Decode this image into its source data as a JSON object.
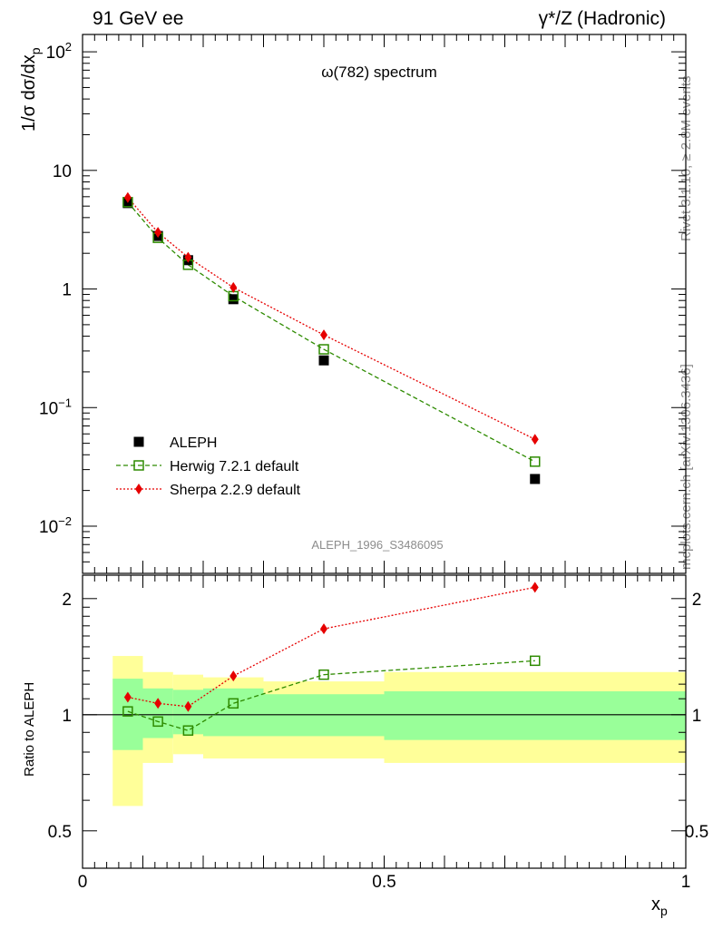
{
  "header": {
    "left": "91 GeV ee",
    "right_sym": "γ*/Z",
    "right_txt": "(Hadronic)"
  },
  "side": {
    "rivet": "Rivet 3.1.10, ≥ 2.8M events",
    "mcplots": "mcplots.cern.ch [arXiv:1306.3436]"
  },
  "chart_data": {
    "type": "scatter",
    "title": "ω(782) spectrum",
    "watermark": "ALEPH_1996_S3486095",
    "xlabel": "x",
    "xlabel_sub": "p",
    "ylabel": "1/σ dσ/dx",
    "ylabel_sub": "p",
    "ratio_ylabel": "Ratio to ALEPH",
    "xlim": [
      0,
      1
    ],
    "ylim": [
      0.004,
      140
    ],
    "yscale": "log",
    "ratio_ylim": [
      0.4,
      2.3
    ],
    "ratio_yscale": "log",
    "xticks": [
      {
        "v": 0,
        "label": "0"
      },
      {
        "v": 0.5,
        "label": "0.5"
      },
      {
        "v": 1,
        "label": "1"
      }
    ],
    "yticks": [
      {
        "v": 0.01,
        "base": "10",
        "exp": "−2"
      },
      {
        "v": 0.1,
        "base": "10",
        "exp": "−1"
      },
      {
        "v": 1,
        "base": "1",
        "exp": ""
      },
      {
        "v": 10,
        "base": "10",
        "exp": ""
      },
      {
        "v": 100,
        "base": "10",
        "exp": "2"
      }
    ],
    "ratio_yticks": [
      {
        "v": 0.5,
        "label": "0.5"
      },
      {
        "v": 1,
        "label": "1"
      },
      {
        "v": 2,
        "label": "2"
      }
    ],
    "legend_position": "bottom-left",
    "series": [
      {
        "name": "ALEPH",
        "marker": "square-filled",
        "color": "#000000",
        "x": [
          0.075,
          0.125,
          0.175,
          0.25,
          0.4,
          0.75
        ],
        "y": [
          5.3,
          2.8,
          1.75,
          0.82,
          0.25,
          0.025
        ],
        "bins": [
          [
            0.05,
            0.1
          ],
          [
            0.1,
            0.15
          ],
          [
            0.15,
            0.2
          ],
          [
            0.2,
            0.3
          ],
          [
            0.3,
            0.5
          ],
          [
            0.5,
            1.0
          ]
        ]
      },
      {
        "name": "Herwig 7.2.1 default",
        "marker": "square-open",
        "color": "#2e8b00",
        "line": "dashed",
        "x": [
          0.075,
          0.125,
          0.175,
          0.25,
          0.4,
          0.75
        ],
        "y": [
          5.4,
          2.7,
          1.6,
          0.87,
          0.31,
          0.035
        ],
        "ratio": [
          1.02,
          0.96,
          0.91,
          1.07,
          1.27,
          1.38
        ]
      },
      {
        "name": "Sherpa 2.2.9 default",
        "marker": "diamond-filled",
        "color": "#e60000",
        "line": "dotted",
        "x": [
          0.075,
          0.125,
          0.175,
          0.25,
          0.4,
          0.75
        ],
        "y": [
          5.9,
          3.0,
          1.85,
          1.03,
          0.41,
          0.054
        ],
        "ratio": [
          1.11,
          1.07,
          1.05,
          1.26,
          1.67,
          2.14
        ]
      }
    ],
    "bands": {
      "inner_color": "#99ff99",
      "outer_color": "#ffff99",
      "bins": [
        {
          "x": [
            0.05,
            0.1
          ],
          "inner": [
            0.81,
            1.24
          ],
          "outer": [
            0.58,
            1.42
          ]
        },
        {
          "x": [
            0.1,
            0.15
          ],
          "inner": [
            0.87,
            1.17
          ],
          "outer": [
            0.75,
            1.29
          ]
        },
        {
          "x": [
            0.15,
            0.2
          ],
          "inner": [
            0.89,
            1.16
          ],
          "outer": [
            0.79,
            1.27
          ]
        },
        {
          "x": [
            0.2,
            0.3
          ],
          "inner": [
            0.88,
            1.17
          ],
          "outer": [
            0.77,
            1.25
          ]
        },
        {
          "x": [
            0.3,
            0.5
          ],
          "inner": [
            0.88,
            1.13
          ],
          "outer": [
            0.77,
            1.22
          ]
        },
        {
          "x": [
            0.5,
            1.0
          ],
          "inner": [
            0.86,
            1.15
          ],
          "outer": [
            0.75,
            1.29
          ]
        }
      ]
    }
  }
}
